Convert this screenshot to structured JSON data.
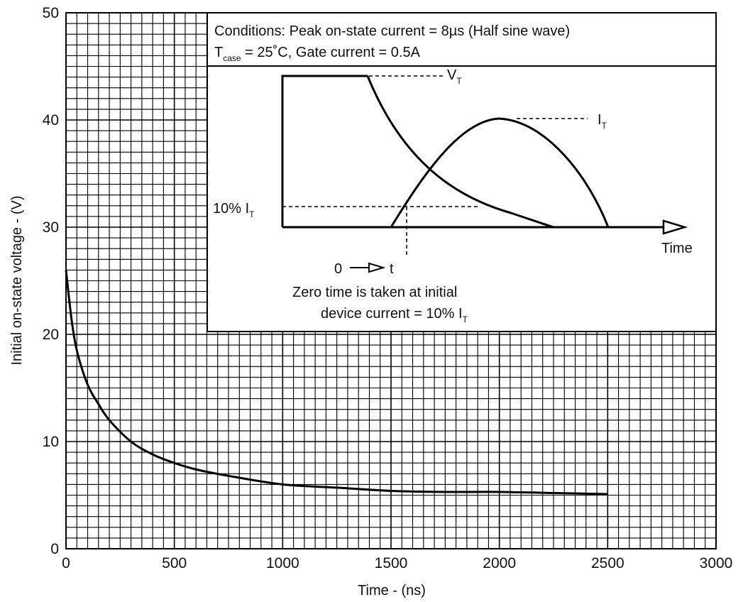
{
  "chart_data": {
    "type": "line",
    "title": "",
    "xlabel": "Time - (ns)",
    "ylabel": "Initial on-state voltage - (V)",
    "xlim": [
      0,
      3000
    ],
    "ylim": [
      0,
      50
    ],
    "grid": true,
    "x_ticks": [
      "0",
      "500",
      "1000",
      "1500",
      "2000",
      "2500",
      "3000"
    ],
    "y_ticks": [
      "0",
      "10",
      "20",
      "30",
      "40",
      "50"
    ],
    "series": [
      {
        "x": [
          0,
          25,
          50,
          100,
          150,
          200,
          300,
          400,
          500,
          600,
          750,
          1000,
          1250,
          1500,
          1750,
          2000,
          2250,
          2500
        ],
        "y": [
          26,
          21.5,
          18.5,
          15.3,
          13.5,
          12.0,
          10.0,
          8.8,
          8.0,
          7.4,
          6.8,
          6.0,
          5.7,
          5.4,
          5.3,
          5.3,
          5.2,
          5.1
        ]
      }
    ],
    "annotations": {
      "conditions_line1": "Conditions: Peak on-state current = 8µs (Half sine wave)",
      "conditions_line2_prefix": "T",
      "conditions_line2_sub": "case",
      "conditions_line2_rest": " = 25˚C, Gate current = 0.5A",
      "inset_vt": "V",
      "inset_vt_sub": "T",
      "inset_it": "I",
      "inset_it_sub": "T",
      "inset_10pct": "10% I",
      "inset_10pct_sub": "T",
      "inset_time": "Time",
      "inset_zero": "0",
      "inset_t": "t",
      "inset_note_line1": "Zero time is taken at initial",
      "inset_note_line2": "device current = 10% I",
      "inset_note_line2_sub": "T"
    }
  }
}
